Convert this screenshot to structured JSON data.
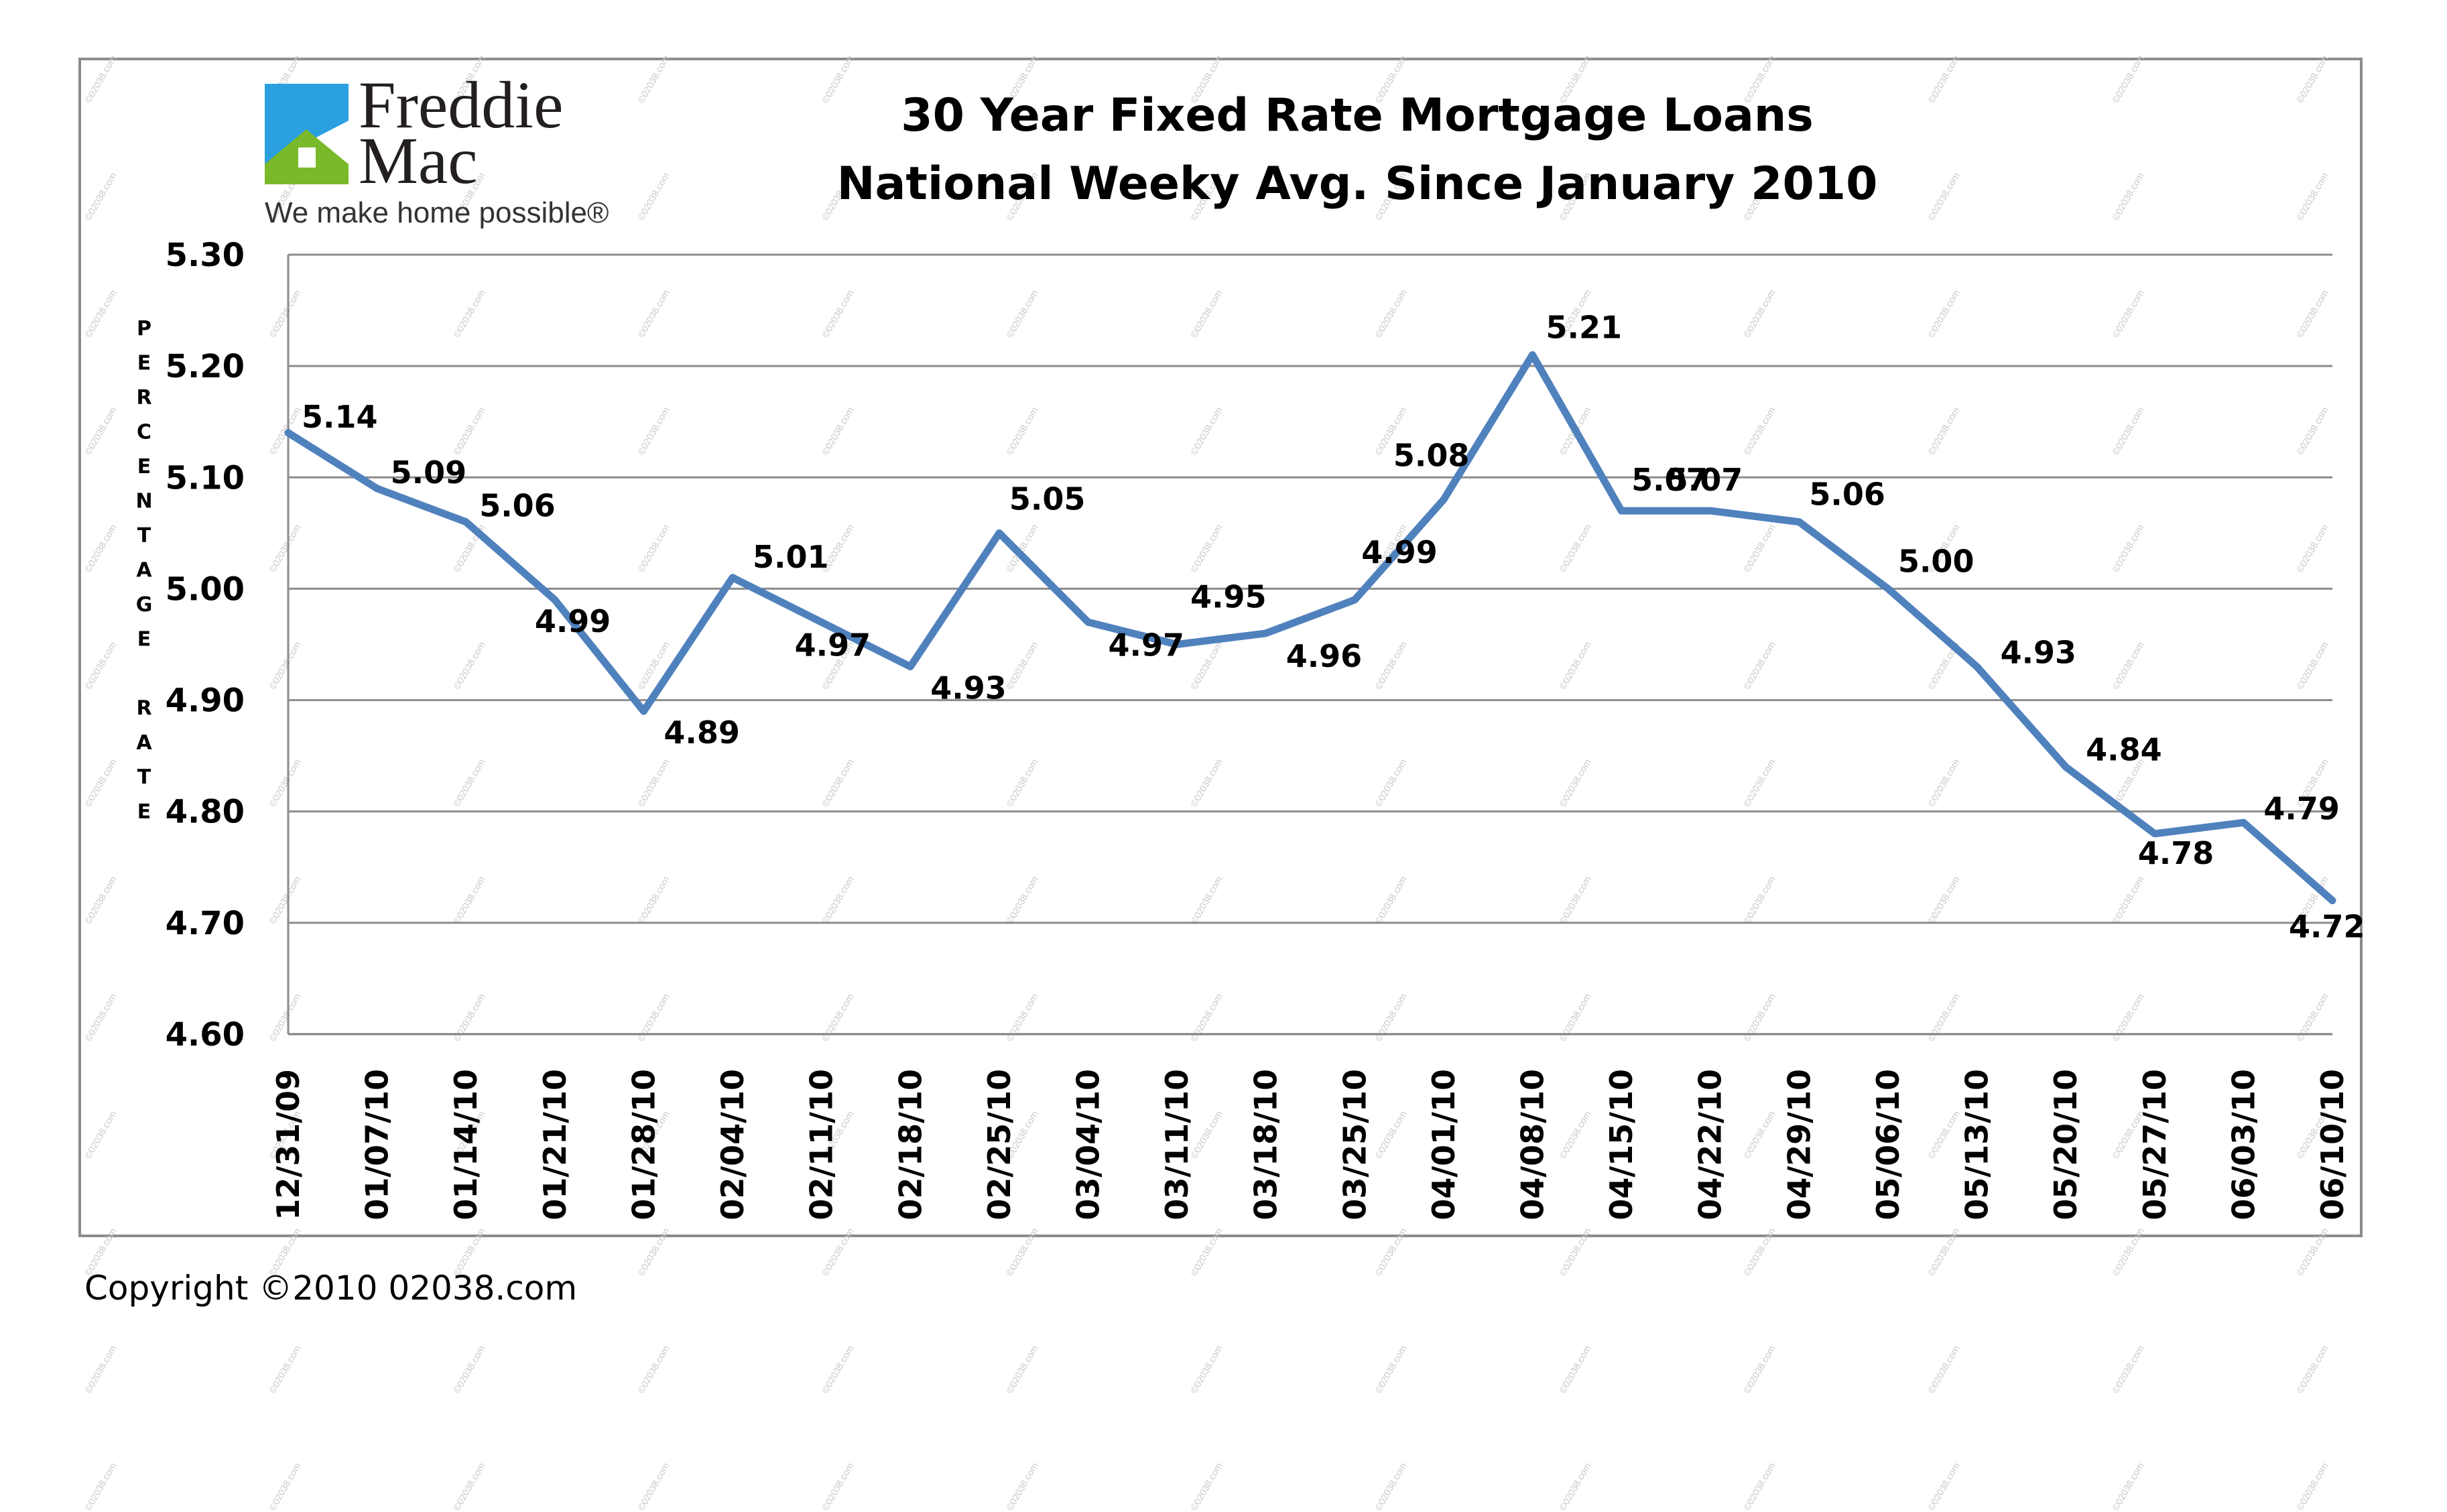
{
  "logo": {
    "brand_line1": "Freddie",
    "brand_line2": "Mac",
    "tagline": "We make home possible®",
    "colors": {
      "blue": "#2aa0e0",
      "green": "#7ab929"
    }
  },
  "watermark": "©02038.com",
  "copyright": "Copyright ©2010 02038.com",
  "chart_data": {
    "type": "line",
    "title": "30 Year Fixed Rate Mortgage Loans",
    "subtitle": "National Weeky Avg. Since January 2010",
    "xlabel": "",
    "ylabel": "PERCENTAGE RATE",
    "ylabel_letters": [
      "P",
      "E",
      "R",
      "C",
      "E",
      "N",
      "T",
      "A",
      "G",
      "E",
      "",
      "R",
      "A",
      "T",
      "E"
    ],
    "ylim": [
      4.6,
      5.3
    ],
    "yticks": [
      "5.30",
      "5.20",
      "5.10",
      "5.00",
      "4.90",
      "4.80",
      "4.70",
      "4.60"
    ],
    "ytick_values": [
      5.3,
      5.2,
      5.1,
      5.0,
      4.9,
      4.8,
      4.7,
      4.6
    ],
    "grid": "horizontal",
    "line_color": "#4f81bd",
    "categories": [
      "12/31/09",
      "01/07/10",
      "01/14/10",
      "01/21/10",
      "01/28/10",
      "02/04/10",
      "02/11/10",
      "02/18/10",
      "02/25/10",
      "03/04/10",
      "03/11/10",
      "03/18/10",
      "03/25/10",
      "04/01/10",
      "04/08/10",
      "04/15/10",
      "04/22/10",
      "04/29/10",
      "05/06/10",
      "05/13/10",
      "05/20/10",
      "05/27/10",
      "06/03/10",
      "06/10/10"
    ],
    "values": [
      5.14,
      5.09,
      5.06,
      4.99,
      4.89,
      5.01,
      4.97,
      4.93,
      5.05,
      4.97,
      4.95,
      4.96,
      4.99,
      5.08,
      5.21,
      5.07,
      5.07,
      5.06,
      5.0,
      4.93,
      4.84,
      4.78,
      4.79,
      4.72
    ],
    "data_labels": [
      "5.14",
      "5.09",
      "5.06",
      "4.99",
      "4.89",
      "5.01",
      "4.97",
      "4.93",
      "5.05",
      "4.97",
      "4.95",
      "4.96",
      "4.99",
      "5.08",
      "5.21",
      "5.07",
      "5.07",
      "5.06",
      "5.00",
      "4.93",
      "4.84",
      "4.78",
      "4.79",
      "4.72"
    ]
  }
}
